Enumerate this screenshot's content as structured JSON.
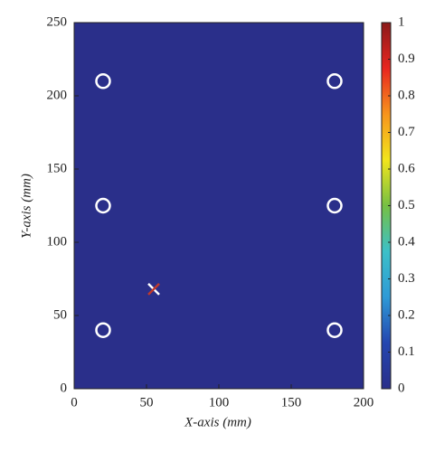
{
  "chart_data": {
    "type": "heatmap",
    "xlabel": "X-axis (mm)",
    "ylabel": "Y-axis (mm)",
    "xlim": [
      0,
      200
    ],
    "ylim": [
      0,
      250
    ],
    "xticks": [
      0,
      50,
      100,
      150,
      200
    ],
    "yticks": [
      0,
      50,
      100,
      150,
      200,
      250
    ],
    "values": [
      [
        0
      ]
    ],
    "clim": [
      0,
      1
    ],
    "cticks": [
      0,
      0.1,
      0.2,
      0.3,
      0.4,
      0.5,
      0.6,
      0.7,
      0.8,
      0.9,
      1
    ],
    "colormap": [
      "#2a2f8a",
      "#2446b0",
      "#2e9ad6",
      "#3cc0c8",
      "#76c043",
      "#f2e51c",
      "#f7941d",
      "#e8261f",
      "#8b1a1a"
    ],
    "markers": [
      {
        "symbol": "circle",
        "color": "#ffffff",
        "x": [
          20,
          20,
          20,
          180,
          180,
          180
        ],
        "y": [
          210,
          125,
          40,
          210,
          125,
          40
        ]
      },
      {
        "symbol": "cross",
        "colors": [
          "#ffffff",
          "#c0392b"
        ],
        "x": [
          55
        ],
        "y": [
          68
        ]
      }
    ]
  }
}
